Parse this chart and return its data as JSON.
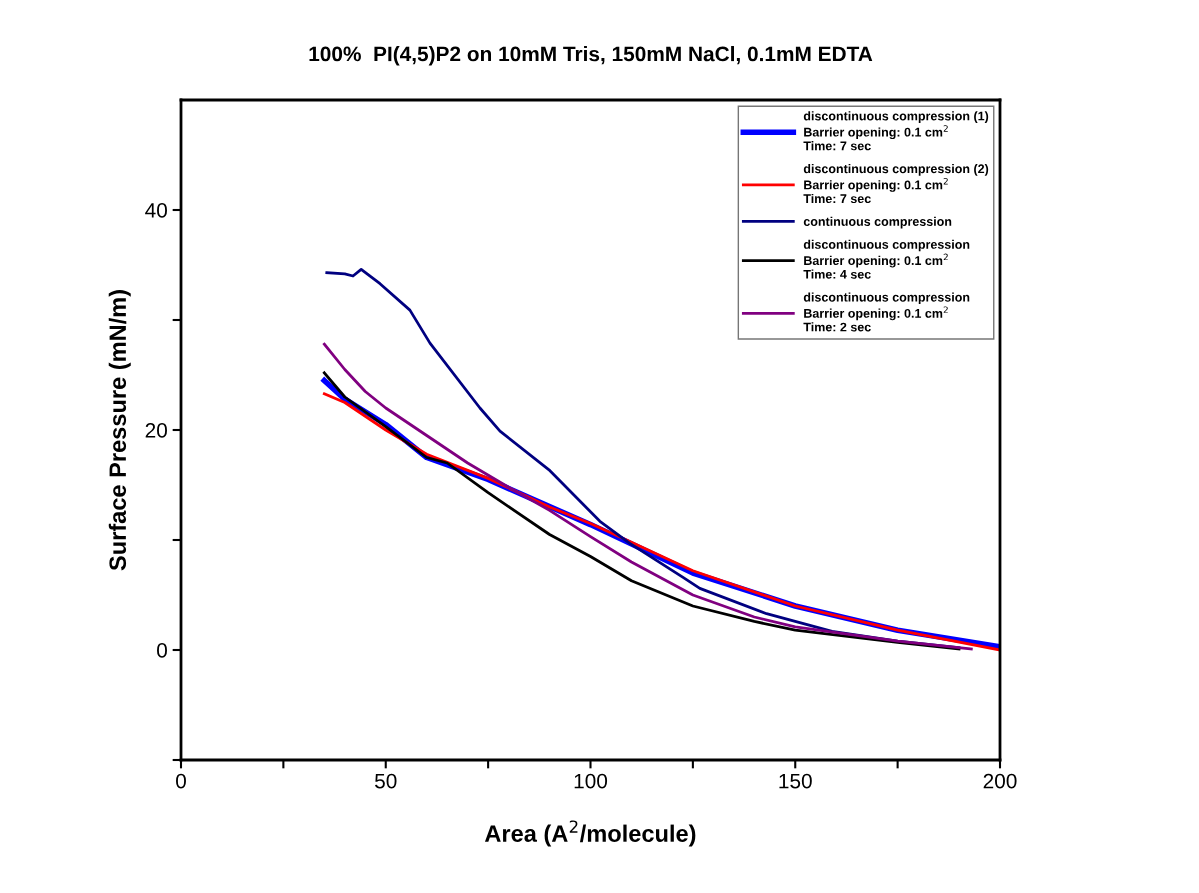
{
  "chart_data": {
    "type": "line",
    "title": "100%  PI(4,5)P2 on 10mM Tris, 150mM NaCl, 0.1mM EDTA",
    "xlabel": "Area (A$^{2}$/molecule)",
    "ylabel": "Surface Pressure (mN/m)",
    "xlim": [
      0,
      200
    ],
    "ylim": [
      -10,
      50
    ],
    "xticks": [
      0,
      {
        "value": 25,
        "label": null
      },
      50,
      {
        "value": 75,
        "label": null
      },
      100,
      {
        "value": 125,
        "label": null
      },
      150,
      {
        "value": 175,
        "label": null
      },
      200
    ],
    "yticks": [
      {
        "value": -10,
        "label": null
      },
      0,
      {
        "value": 10,
        "label": null
      },
      20,
      {
        "value": 30,
        "label": null
      },
      40
    ],
    "grid": false,
    "legend": "top right",
    "series": [
      {
        "name": "discontinuous compression (1)\nBarrier opening: 0.1 cm$^{2}$\nTime: 7 sec",
        "color": "#0000ff",
        "x": [
          35,
          40,
          50,
          60,
          75,
          100,
          125,
          150,
          175,
          200
        ],
        "values": [
          24.5,
          22.8,
          20.5,
          17.5,
          15.5,
          11.4,
          7,
          4,
          1.8,
          0.3
        ]
      },
      {
        "name": "discontinuous compression (2)\nBarrier opening: 0.1 cm$^{2}$\nTime: 7 sec",
        "color": "#ff0000",
        "x": [
          35,
          40,
          50,
          60,
          75,
          90,
          100,
          110,
          125,
          150,
          175,
          200
        ],
        "values": [
          23.3,
          22.5,
          20,
          17.8,
          15.6,
          13,
          11.5,
          9.8,
          7.2,
          4.0,
          1.8,
          0.0
        ]
      },
      {
        "name": "continuous compression",
        "color": "#000080",
        "x": [
          35.6,
          40,
          42,
          44,
          48.6,
          55.9,
          60.8,
          73,
          77.9,
          90.1,
          102.3,
          109.6,
          122.6,
          126.7,
          143,
          159,
          175,
          190
        ],
        "values": [
          34.3,
          34.2,
          34.0,
          34.6,
          33.3,
          30.9,
          27.9,
          22.0,
          19.9,
          16.3,
          11.7,
          9.7,
          6.6,
          5.6,
          3.3,
          1.7,
          0.8,
          0.2
        ]
      },
      {
        "name": "discontinuous compression\nBarrier opening: 0.1 cm$^{2}$\nTime: 4 sec",
        "color": "#000000",
        "x": [
          35,
          40,
          50,
          60,
          65,
          75,
          90,
          100,
          110,
          125,
          140,
          150,
          175,
          190
        ],
        "values": [
          25.2,
          23,
          20.3,
          17.5,
          17,
          14.3,
          10.5,
          8.5,
          6.3,
          4.0,
          2.6,
          1.8,
          0.7,
          0.1
        ]
      },
      {
        "name": "discontinuous compression\nBarrier opening: 0.1 cm$^{2}$\nTime: 2 sec",
        "color": "#800080",
        "x": [
          35,
          40,
          45,
          50,
          60,
          70,
          80,
          90,
          100,
          110,
          125,
          140,
          150,
          175,
          193
        ],
        "values": [
          27.8,
          25.5,
          23.5,
          22,
          19.5,
          17,
          14.8,
          12.7,
          10.3,
          8.0,
          5,
          3,
          2.1,
          0.8,
          0.1
        ]
      }
    ]
  }
}
